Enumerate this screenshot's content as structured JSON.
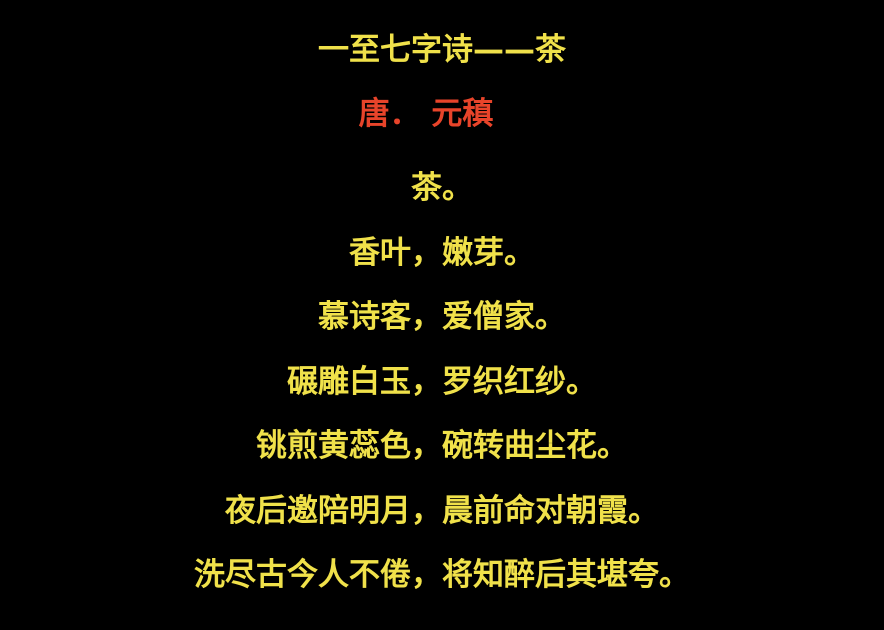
{
  "title": "一至七字诗——茶",
  "author": "唐．  元稹",
  "poem": {
    "lines": [
      "茶。",
      "香叶，嫩芽。",
      "慕诗客，爱僧家。",
      "碾雕白玉，罗织红纱。",
      "铫煎黄蕊色，碗转曲尘花。",
      "夜后邀陪明月，晨前命对朝霞。",
      "洗尽古今人不倦，将知醉后其堪夸。"
    ]
  },
  "colors": {
    "background": "#000000",
    "text": "#f0e14a",
    "author": "#e8442a"
  }
}
